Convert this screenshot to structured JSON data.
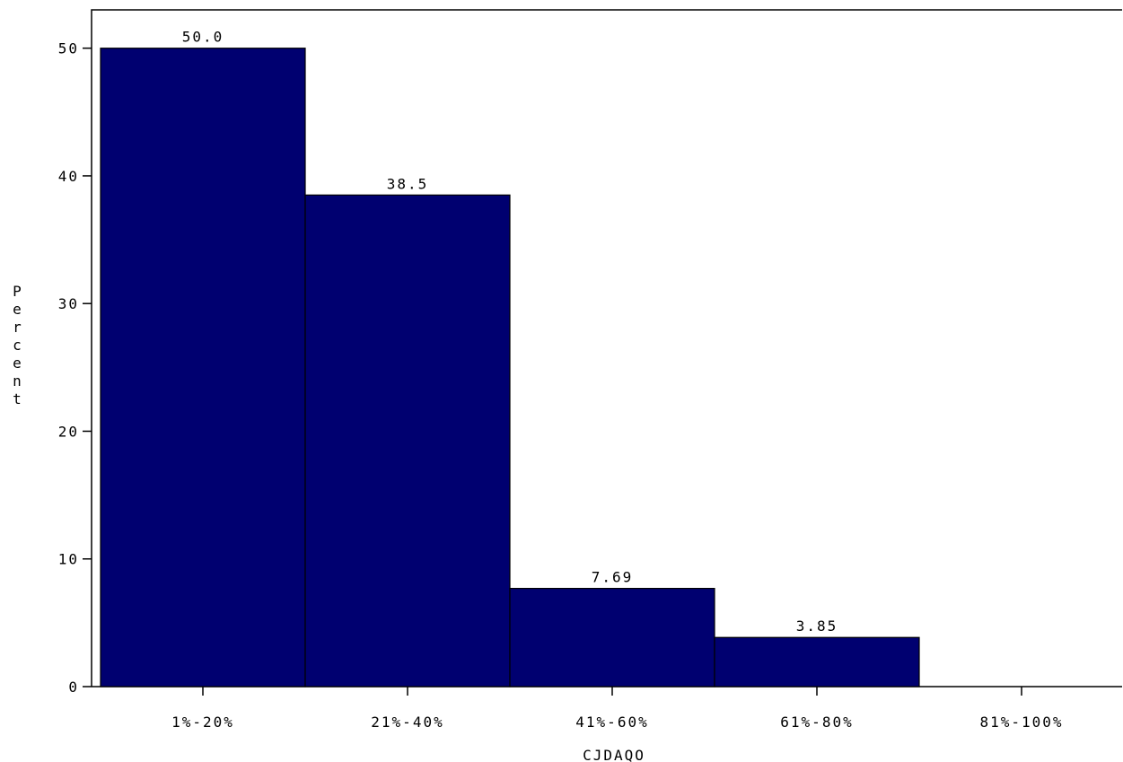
{
  "chart_data": {
    "type": "bar",
    "categories": [
      "1%-20%",
      "21%-40%",
      "41%-60%",
      "61%-80%",
      "81%-100%"
    ],
    "values": [
      50.0,
      38.5,
      7.69,
      3.85,
      0
    ],
    "value_labels": [
      "50.0",
      "38.5",
      "7.69",
      "3.85",
      ""
    ],
    "title": "",
    "xlabel": "CJDAQO",
    "ylabel": "Percent",
    "ylim": [
      0,
      53
    ],
    "yticks": [
      0,
      10,
      20,
      30,
      40,
      50
    ],
    "grid": false,
    "legend": "none",
    "colors": {
      "bar": "#000070",
      "border": "#000000"
    }
  }
}
